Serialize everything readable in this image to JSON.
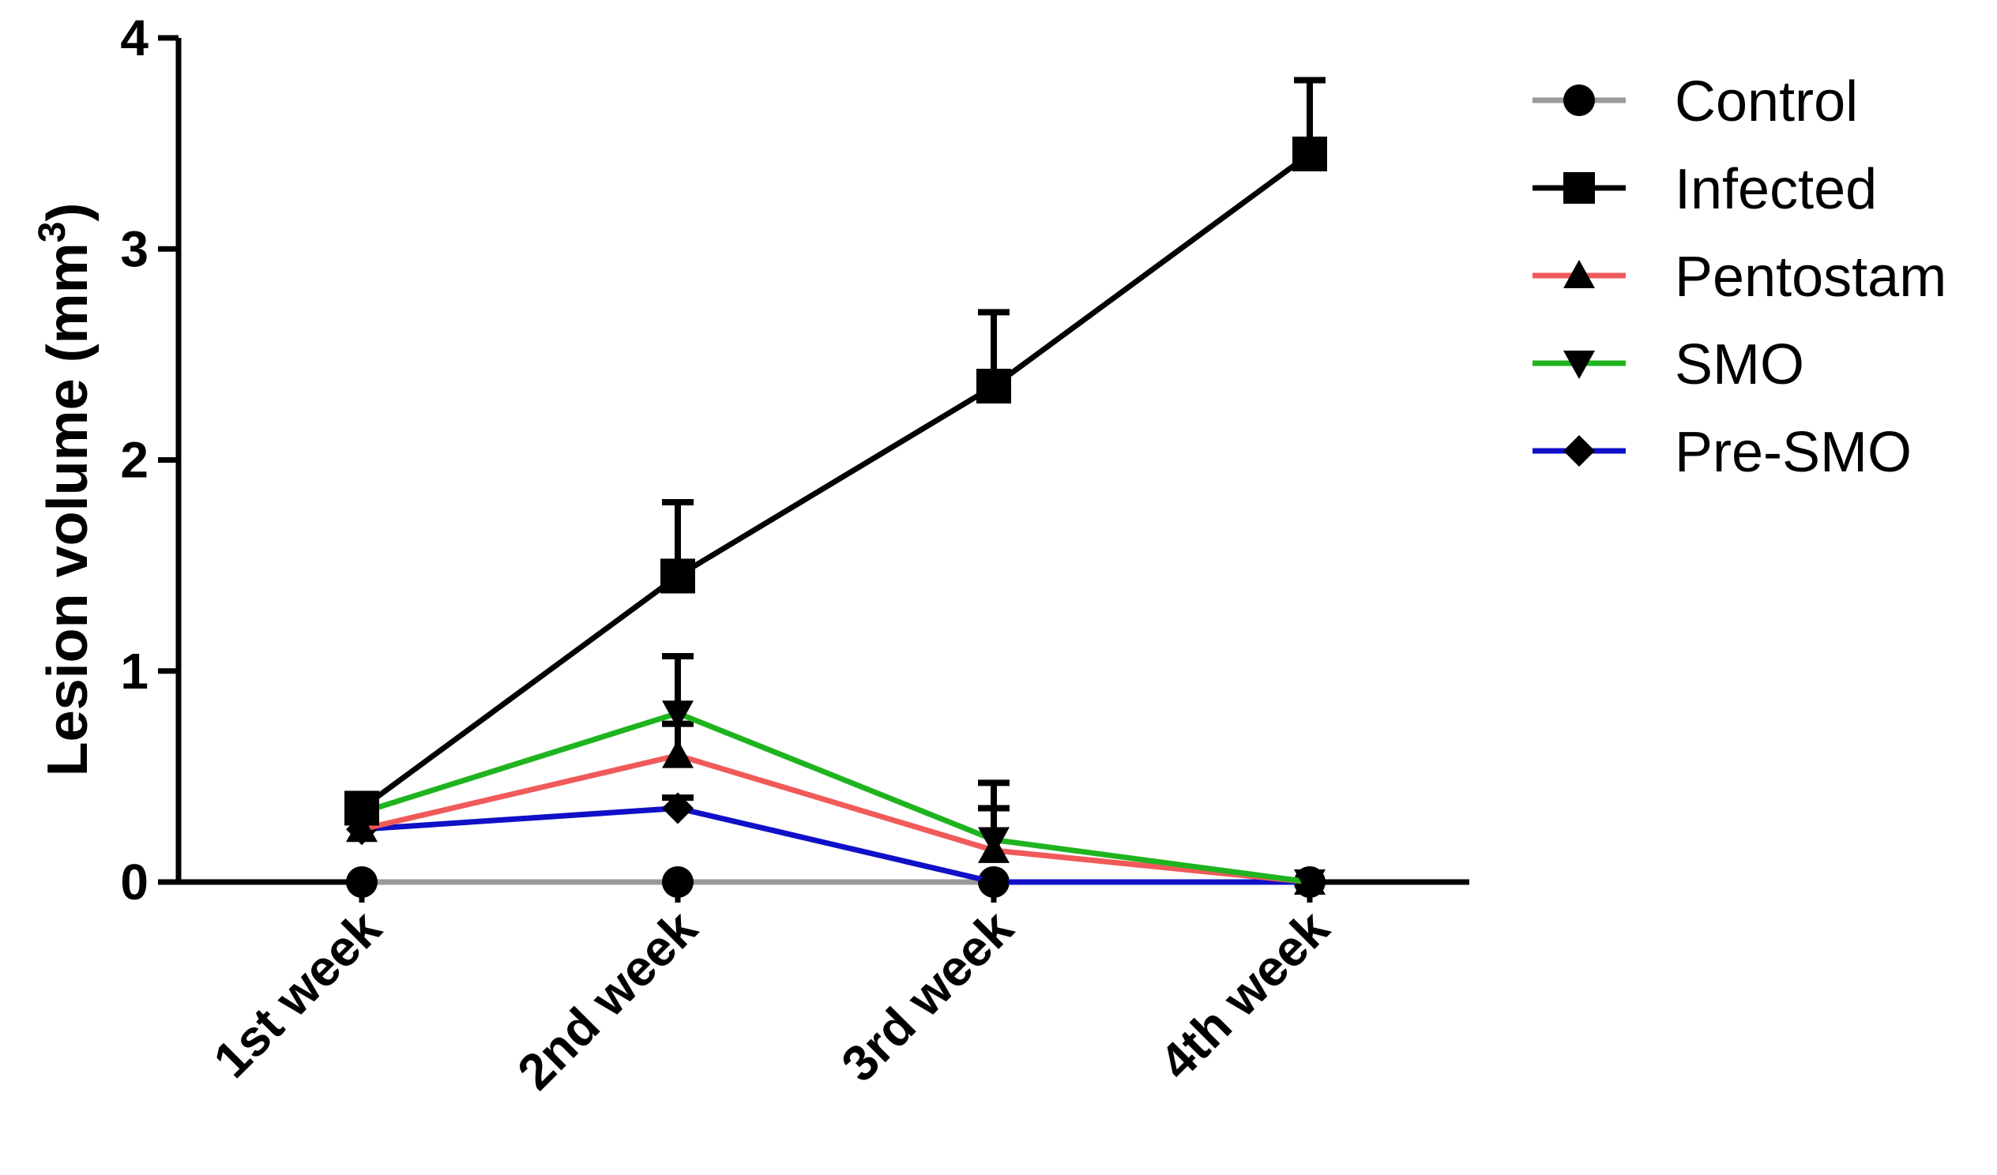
{
  "chart_data": {
    "type": "line",
    "categories": [
      "1st week",
      "2nd week",
      "3rd week",
      "4th week"
    ],
    "ylabel": "Lesion volume (mm3)",
    "ylabel_main": "Lesion volume (mm",
    "ylabel_sup": "3",
    "ylabel_close": ")",
    "ylim": [
      0,
      4
    ],
    "yticks": [
      "0",
      "1",
      "2",
      "3",
      "4"
    ],
    "grid": false,
    "legend_position": "right",
    "series": [
      {
        "name": "Control",
        "color": "#999999",
        "marker": "circle",
        "values": [
          0,
          0,
          0,
          0
        ],
        "errors": [
          0,
          0,
          0,
          0
        ]
      },
      {
        "name": "Infected",
        "color": "#000000",
        "marker": "square",
        "values": [
          0.35,
          1.45,
          2.35,
          3.45
        ],
        "errors": [
          0,
          0.35,
          0.35,
          0.35
        ]
      },
      {
        "name": "Pentostam",
        "color": "#f05a5a",
        "marker": "triangle-up",
        "values": [
          0.25,
          0.6,
          0.15,
          0
        ],
        "errors": [
          0,
          0.15,
          0.2,
          0
        ]
      },
      {
        "name": "SMO",
        "color": "#1fb41f",
        "marker": "triangle-down",
        "values": [
          0.33,
          0.8,
          0.2,
          0
        ],
        "errors": [
          0,
          0.27,
          0.27,
          0
        ]
      },
      {
        "name": "Pre-SMO",
        "color": "#1010c8",
        "marker": "diamond",
        "values": [
          0.25,
          0.35,
          0,
          0
        ],
        "errors": [
          0,
          0.05,
          0,
          0
        ]
      }
    ]
  }
}
